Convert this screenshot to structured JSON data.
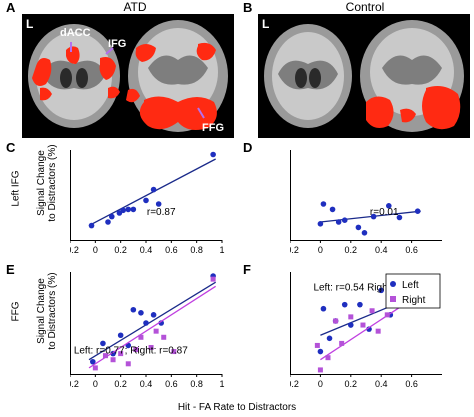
{
  "panels": {
    "A": "A",
    "B": "B",
    "C": "C",
    "D": "D",
    "E": "E",
    "F": "F"
  },
  "groups": {
    "atd": "ATD",
    "control": "Control"
  },
  "brain_labels": {
    "L": "L",
    "dacc": "dACC",
    "ifg": "IFG",
    "ffg": "FFG"
  },
  "ylabels": {
    "c_region": "Left IFG",
    "e_region": "FFG",
    "signal_line1": "Signal Change",
    "signal_line2": "to Distractors (%)"
  },
  "xlabel": "Hit - FA Rate to Distractors",
  "colors": {
    "left": "#1f2fbf",
    "right": "#b452d8",
    "activation": "#ff2a12",
    "fitline_left": "#1a2a8a",
    "fitline_right": "#c040e0"
  },
  "chart_data": [
    {
      "panel": "C",
      "type": "scatter",
      "xticks": [
        "−0.2",
        "0",
        "0.2",
        "0.4",
        "0.6",
        "0.8",
        "1"
      ],
      "xlim": [
        -0.2,
        1.0
      ],
      "ylim": [
        0,
        1
      ],
      "annotation": "r=0.87",
      "series": [
        {
          "points": [
            [
              -0.03,
              0.16
            ],
            [
              0.1,
              0.2
            ],
            [
              0.13,
              0.26
            ],
            [
              0.19,
              0.3
            ],
            [
              0.22,
              0.33
            ],
            [
              0.26,
              0.34
            ],
            [
              0.3,
              0.34
            ],
            [
              0.4,
              0.44
            ],
            [
              0.46,
              0.56
            ],
            [
              0.5,
              0.4
            ],
            [
              0.93,
              0.95
            ]
          ],
          "fit": [
            [
              -0.05,
              0.16
            ],
            [
              0.95,
              0.9
            ]
          ]
        }
      ]
    },
    {
      "panel": "D",
      "type": "scatter",
      "xticks": [
        "−0.2",
        "0",
        "0.2",
        "0.4",
        "0.6"
      ],
      "xlim": [
        -0.2,
        0.8
      ],
      "ylim": [
        0,
        1
      ],
      "annotation": "r=0.01",
      "series": [
        {
          "points": [
            [
              0.0,
              0.18
            ],
            [
              0.02,
              0.4
            ],
            [
              0.08,
              0.34
            ],
            [
              0.12,
              0.2
            ],
            [
              0.16,
              0.22
            ],
            [
              0.25,
              0.14
            ],
            [
              0.29,
              0.08
            ],
            [
              0.35,
              0.26
            ],
            [
              0.45,
              0.38
            ],
            [
              0.52,
              0.25
            ],
            [
              0.64,
              0.32
            ]
          ],
          "fit": [
            [
              0.0,
              0.2
            ],
            [
              0.66,
              0.32
            ]
          ]
        }
      ]
    },
    {
      "panel": "E",
      "type": "scatter",
      "xticks": [
        "−0.2",
        "0",
        "0.2",
        "0.4",
        "0.6",
        "0.8",
        "1"
      ],
      "xlim": [
        -0.2,
        1.0
      ],
      "ylim": [
        0,
        1
      ],
      "annotation": "Left: r=0.77; Right: r=0.87",
      "series": [
        {
          "name": "Left",
          "color": "#1f2fbf",
          "points": [
            [
              -0.02,
              0.12
            ],
            [
              0.06,
              0.3
            ],
            [
              0.14,
              0.2
            ],
            [
              0.2,
              0.38
            ],
            [
              0.26,
              0.28
            ],
            [
              0.3,
              0.63
            ],
            [
              0.36,
              0.6
            ],
            [
              0.4,
              0.5
            ],
            [
              0.46,
              0.58
            ],
            [
              0.52,
              0.5
            ],
            [
              0.93,
              0.96
            ]
          ],
          "fit": [
            [
              -0.05,
              0.14
            ],
            [
              0.95,
              0.9
            ]
          ]
        },
        {
          "name": "Right",
          "color": "#b452d8",
          "points": [
            [
              0.0,
              0.06
            ],
            [
              0.08,
              0.18
            ],
            [
              0.14,
              0.14
            ],
            [
              0.2,
              0.2
            ],
            [
              0.26,
              0.1
            ],
            [
              0.32,
              0.24
            ],
            [
              0.36,
              0.36
            ],
            [
              0.44,
              0.26
            ],
            [
              0.48,
              0.42
            ],
            [
              0.54,
              0.36
            ],
            [
              0.62,
              0.22
            ],
            [
              0.93,
              0.93
            ]
          ],
          "fit": [
            [
              -0.05,
              0.06
            ],
            [
              0.95,
              0.86
            ]
          ]
        }
      ]
    },
    {
      "panel": "F",
      "type": "scatter",
      "xticks": [
        "−0.2",
        "0",
        "0.2",
        "0.4",
        "0.6"
      ],
      "xlim": [
        -0.2,
        0.8
      ],
      "ylim": [
        0,
        1
      ],
      "annotation": "Left: r=0.54 Right: r=0.75",
      "legend": [
        "Left",
        "Right"
      ],
      "series": [
        {
          "name": "Left",
          "color": "#1f2fbf",
          "points": [
            [
              0.0,
              0.22
            ],
            [
              0.02,
              0.64
            ],
            [
              0.06,
              0.35
            ],
            [
              0.1,
              0.52
            ],
            [
              0.16,
              0.68
            ],
            [
              0.2,
              0.48
            ],
            [
              0.26,
              0.68
            ],
            [
              0.32,
              0.44
            ],
            [
              0.4,
              0.82
            ],
            [
              0.46,
              0.58
            ],
            [
              0.55,
              0.72
            ],
            [
              0.62,
              0.76
            ]
          ],
          "fit": [
            [
              0.0,
              0.38
            ],
            [
              0.65,
              0.78
            ]
          ]
        },
        {
          "name": "Right",
          "color": "#b452d8",
          "points": [
            [
              -0.02,
              0.28
            ],
            [
              0.0,
              0.04
            ],
            [
              0.05,
              0.16
            ],
            [
              0.1,
              0.52
            ],
            [
              0.14,
              0.3
            ],
            [
              0.2,
              0.56
            ],
            [
              0.28,
              0.48
            ],
            [
              0.34,
              0.62
            ],
            [
              0.38,
              0.42
            ],
            [
              0.44,
              0.58
            ],
            [
              0.5,
              0.72
            ],
            [
              0.6,
              0.82
            ],
            [
              0.64,
              0.78
            ]
          ],
          "fit": [
            [
              0.0,
              0.14
            ],
            [
              0.65,
              0.78
            ]
          ]
        }
      ]
    }
  ]
}
